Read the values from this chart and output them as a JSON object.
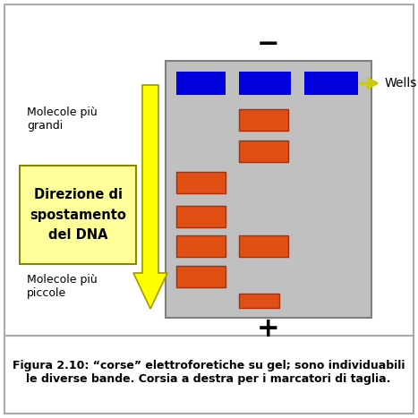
{
  "fig_width": 4.67,
  "fig_height": 4.67,
  "dpi": 100,
  "bg_color": "#ffffff",
  "gel_color": "#c0c0c0",
  "gel_edge_color": "#808080",
  "well_color": "#0000dd",
  "band_color": "#e05015",
  "band_edge_color": "#a03010",
  "yellow_arrow_color": "#ffff00",
  "yellow_arrow_edge": "#999900",
  "caption_text": "Figura 2.10: “corse” elettroforetiche su gel; sono individuabili\nle diverse bande. Corsia a destra per i marcatori di taglia.",
  "caption_fontsize": 9,
  "minus_sign": "−",
  "plus_sign": "+",
  "sign_fontsize": 22,
  "wells_label": "Wells",
  "mol_grandi_text": "Molecole più\ngrandi",
  "mol_piccole_text": "Molecole più\npiccole",
  "mol_fontsize": 9,
  "direction_text": "Direzione di\nspostamento\ndel DNA",
  "direction_fontsize": 10.5,
  "direction_box_color": "#ffff99",
  "direction_box_edge": "#888800"
}
